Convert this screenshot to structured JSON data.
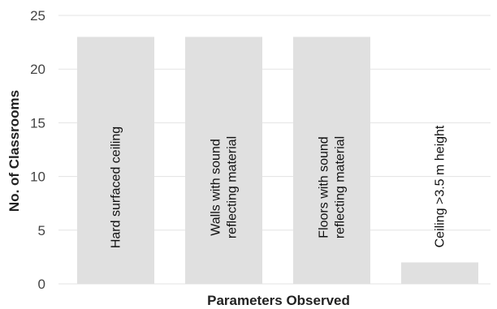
{
  "chart_data": {
    "type": "bar",
    "categories": [
      [
        "Hard surfaced ceiling"
      ],
      [
        "Walls with sound",
        "reflecting material"
      ],
      [
        "Floors with sound",
        "reflecting material"
      ],
      [
        "Ceiling >3.5 m height"
      ]
    ],
    "values": [
      23,
      23,
      23,
      2
    ],
    "xlabel": "Parameters Observed",
    "ylabel": "No. of Classrooms",
    "ylim": [
      0,
      25
    ],
    "yticks": [
      0,
      5,
      10,
      15,
      20,
      25
    ],
    "grid": true,
    "bar_color": "#e0e0e0",
    "grid_color": "#e3e3e3"
  }
}
